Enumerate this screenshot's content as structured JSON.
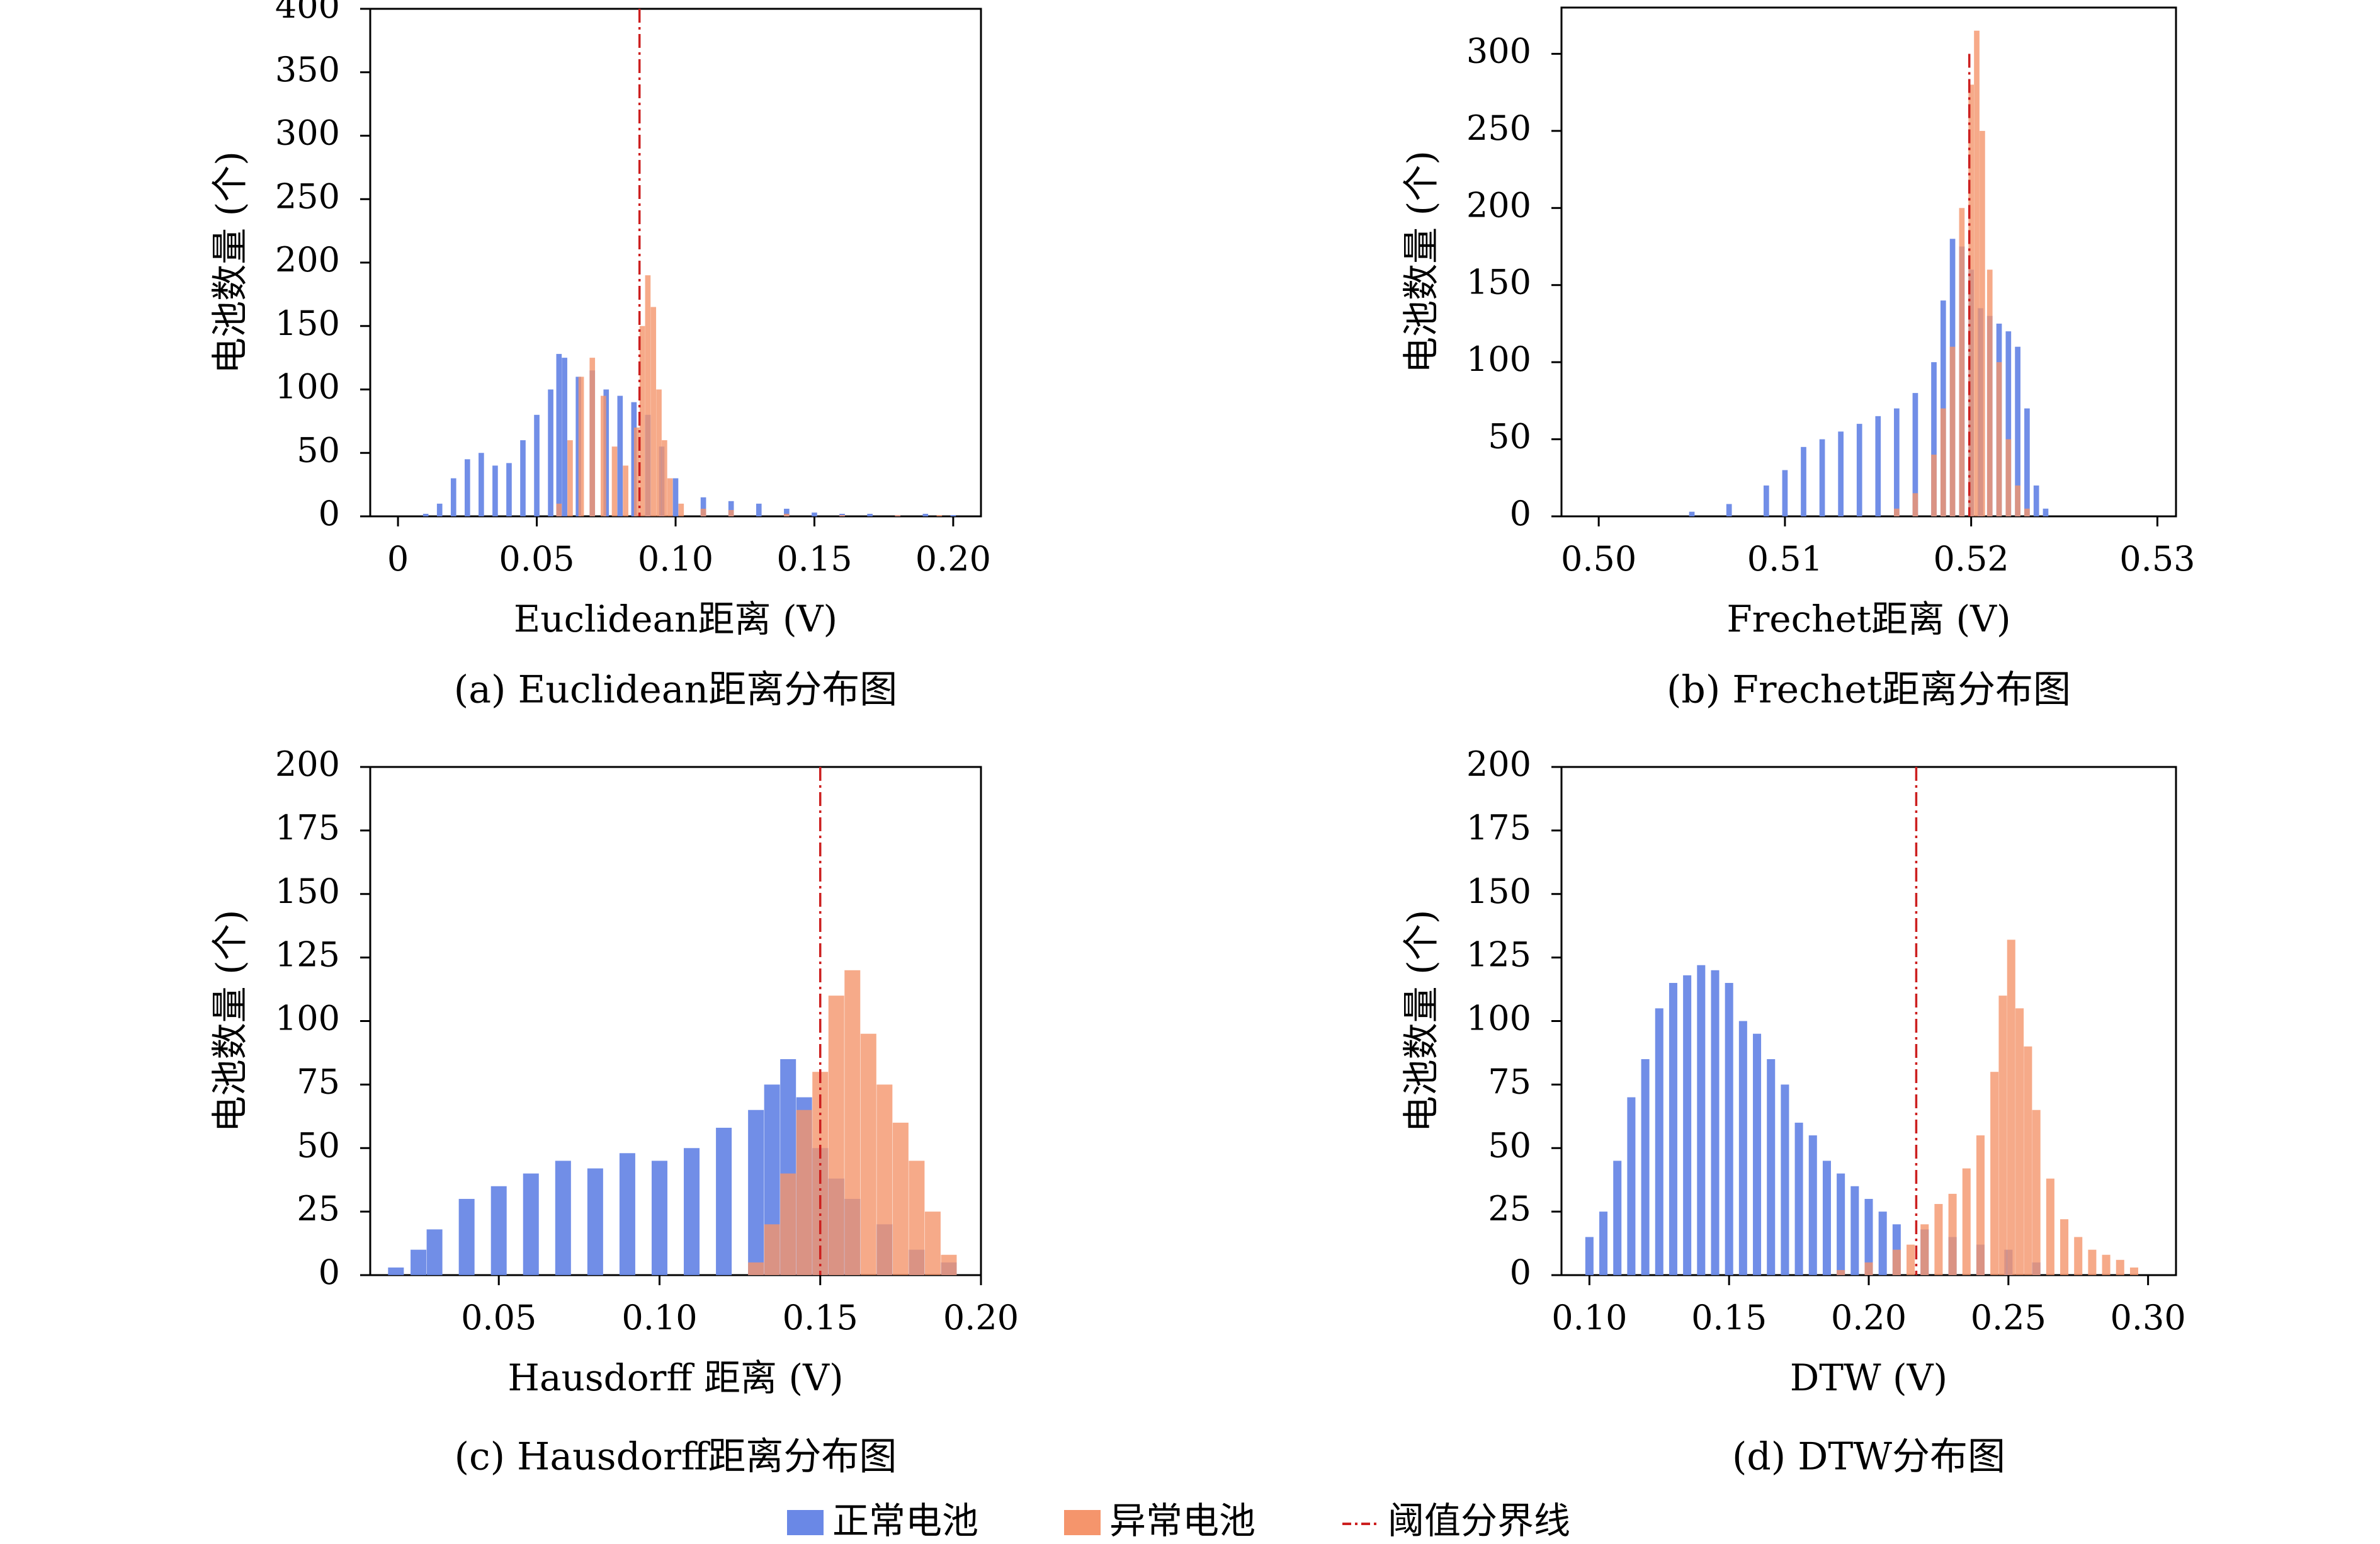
{
  "legend": {
    "normal_label": "正常电池",
    "abnormal_label": "异常电池",
    "threshold_label": "阈值分界线",
    "normal_color": "#6a88e6",
    "abnormal_color": "#f5956c",
    "threshold_color": "#cc1f1f"
  },
  "chart_data": [
    {
      "type": "bar",
      "panel": "a",
      "caption": "(a) Euclidean距离分布图",
      "xlabel": "Euclidean距离 (V)",
      "ylabel": "电池数量 (个)",
      "xlim": [
        -0.01,
        0.21
      ],
      "ylim": [
        0,
        400
      ],
      "xticks": [
        0,
        0.05,
        0.1,
        0.15,
        0.2
      ],
      "xtick_labels": [
        "0",
        "0.05",
        "0.10",
        "0.15",
        "0.20"
      ],
      "yticks": [
        0,
        50,
        100,
        150,
        200,
        250,
        300,
        350,
        400
      ],
      "threshold": {
        "x": 0.087,
        "ymax": 400
      },
      "series": [
        {
          "name": "正常电池",
          "x": [
            0.01,
            0.015,
            0.02,
            0.025,
            0.03,
            0.035,
            0.04,
            0.045,
            0.05,
            0.055,
            0.058,
            0.06,
            0.065,
            0.07,
            0.075,
            0.08,
            0.085,
            0.09,
            0.095,
            0.1,
            0.11,
            0.12,
            0.13,
            0.14,
            0.15,
            0.16,
            0.17,
            0.18,
            0.19,
            0.2
          ],
          "values": [
            2,
            10,
            30,
            45,
            50,
            40,
            42,
            60,
            80,
            100,
            128,
            125,
            110,
            115,
            100,
            95,
            90,
            80,
            55,
            30,
            15,
            12,
            10,
            6,
            3,
            2,
            2,
            1,
            2,
            1
          ]
        },
        {
          "name": "异常电池",
          "x": [
            0.058,
            0.062,
            0.066,
            0.07,
            0.074,
            0.078,
            0.082,
            0.086,
            0.088,
            0.09,
            0.092,
            0.094,
            0.096,
            0.098,
            0.102,
            0.11,
            0.12,
            0.14,
            0.16,
            0.18,
            0.195
          ],
          "values": [
            10,
            60,
            110,
            125,
            95,
            55,
            40,
            70,
            150,
            190,
            165,
            100,
            60,
            30,
            10,
            6,
            5,
            2,
            1,
            1,
            1
          ]
        }
      ]
    },
    {
      "type": "bar",
      "panel": "b",
      "caption": "(b) Frechet距离分布图",
      "xlabel": "Frechet距离 (V)",
      "ylabel": "电池数量 (个)",
      "xlim": [
        0.498,
        0.531
      ],
      "ylim": [
        0,
        330
      ],
      "xticks": [
        0.5,
        0.51,
        0.52,
        0.53
      ],
      "xtick_labels": [
        "0.50",
        "0.51",
        "0.52",
        "0.53"
      ],
      "yticks": [
        0,
        50,
        100,
        150,
        200,
        250,
        300
      ],
      "threshold": {
        "x": 0.5199,
        "ymax": 300
      },
      "series": [
        {
          "name": "正常电池",
          "x": [
            0.505,
            0.507,
            0.509,
            0.51,
            0.511,
            0.512,
            0.513,
            0.514,
            0.515,
            0.516,
            0.517,
            0.518,
            0.5185,
            0.519,
            0.5195,
            0.52,
            0.5205,
            0.521,
            0.5215,
            0.522,
            0.5225,
            0.523,
            0.5235,
            0.524
          ],
          "values": [
            3,
            8,
            20,
            30,
            45,
            50,
            55,
            60,
            65,
            70,
            80,
            100,
            140,
            180,
            175,
            160,
            135,
            130,
            125,
            120,
            110,
            70,
            20,
            5
          ]
        },
        {
          "name": "异常电池",
          "x": [
            0.516,
            0.517,
            0.518,
            0.5185,
            0.519,
            0.5195,
            0.52,
            0.5203,
            0.5206,
            0.521,
            0.5215,
            0.522,
            0.5225,
            0.523
          ],
          "values": [
            5,
            15,
            40,
            70,
            110,
            200,
            280,
            315,
            250,
            160,
            100,
            50,
            20,
            5
          ]
        }
      ]
    },
    {
      "type": "bar",
      "panel": "c",
      "caption": "(c) Hausdorff距离分布图",
      "xlabel": "Hausdorff 距离 (V)",
      "ylabel": "电池数量 (个)",
      "xlim": [
        0.01,
        0.2
      ],
      "ylim": [
        0,
        200
      ],
      "xticks": [
        0.05,
        0.1,
        0.15,
        0.2
      ],
      "xtick_labels": [
        "0.05",
        "0.10",
        "0.15",
        "0.20"
      ],
      "yticks": [
        0,
        25,
        50,
        75,
        100,
        125,
        150,
        175,
        200
      ],
      "threshold": {
        "x": 0.15,
        "ymax": 200
      },
      "series": [
        {
          "name": "正常电池",
          "x": [
            0.018,
            0.025,
            0.03,
            0.04,
            0.05,
            0.06,
            0.07,
            0.08,
            0.09,
            0.1,
            0.11,
            0.12,
            0.13,
            0.135,
            0.14,
            0.145,
            0.15,
            0.155,
            0.16,
            0.17,
            0.18,
            0.19
          ],
          "values": [
            3,
            10,
            18,
            30,
            35,
            40,
            45,
            42,
            48,
            45,
            50,
            58,
            65,
            75,
            85,
            70,
            50,
            38,
            30,
            20,
            10,
            5
          ]
        },
        {
          "name": "异常电池",
          "x": [
            0.13,
            0.135,
            0.14,
            0.145,
            0.15,
            0.155,
            0.16,
            0.165,
            0.17,
            0.175,
            0.18,
            0.185,
            0.19
          ],
          "values": [
            5,
            20,
            40,
            65,
            80,
            110,
            120,
            95,
            75,
            60,
            45,
            25,
            8
          ]
        }
      ]
    },
    {
      "type": "bar",
      "panel": "d",
      "caption": "(d) DTW分布图",
      "xlabel": "DTW (V)",
      "ylabel": "电池数量 (个)",
      "xlim": [
        0.09,
        0.31
      ],
      "ylim": [
        0,
        200
      ],
      "xticks": [
        0.1,
        0.15,
        0.2,
        0.25,
        0.3
      ],
      "xtick_labels": [
        "0.10",
        "0.15",
        "0.20",
        "0.25",
        "0.30"
      ],
      "yticks": [
        0,
        25,
        50,
        75,
        100,
        125,
        150,
        175,
        200
      ],
      "threshold": {
        "x": 0.217,
        "ymax": 200
      },
      "series": [
        {
          "name": "正常电池",
          "x": [
            0.1,
            0.105,
            0.11,
            0.115,
            0.12,
            0.125,
            0.13,
            0.135,
            0.14,
            0.145,
            0.15,
            0.155,
            0.16,
            0.165,
            0.17,
            0.175,
            0.18,
            0.185,
            0.19,
            0.195,
            0.2,
            0.205,
            0.21,
            0.22,
            0.23,
            0.24,
            0.25,
            0.26
          ],
          "values": [
            15,
            25,
            45,
            70,
            85,
            105,
            115,
            118,
            122,
            120,
            115,
            100,
            95,
            85,
            75,
            60,
            55,
            45,
            40,
            35,
            30,
            25,
            20,
            18,
            15,
            12,
            10,
            5
          ]
        },
        {
          "name": "异常电池",
          "x": [
            0.19,
            0.2,
            0.21,
            0.215,
            0.22,
            0.225,
            0.23,
            0.235,
            0.24,
            0.245,
            0.248,
            0.251,
            0.254,
            0.257,
            0.26,
            0.265,
            0.27,
            0.275,
            0.28,
            0.285,
            0.29,
            0.295
          ],
          "values": [
            2,
            5,
            10,
            12,
            20,
            28,
            32,
            42,
            55,
            80,
            110,
            132,
            105,
            90,
            65,
            38,
            22,
            15,
            10,
            8,
            6,
            3
          ]
        }
      ]
    }
  ]
}
